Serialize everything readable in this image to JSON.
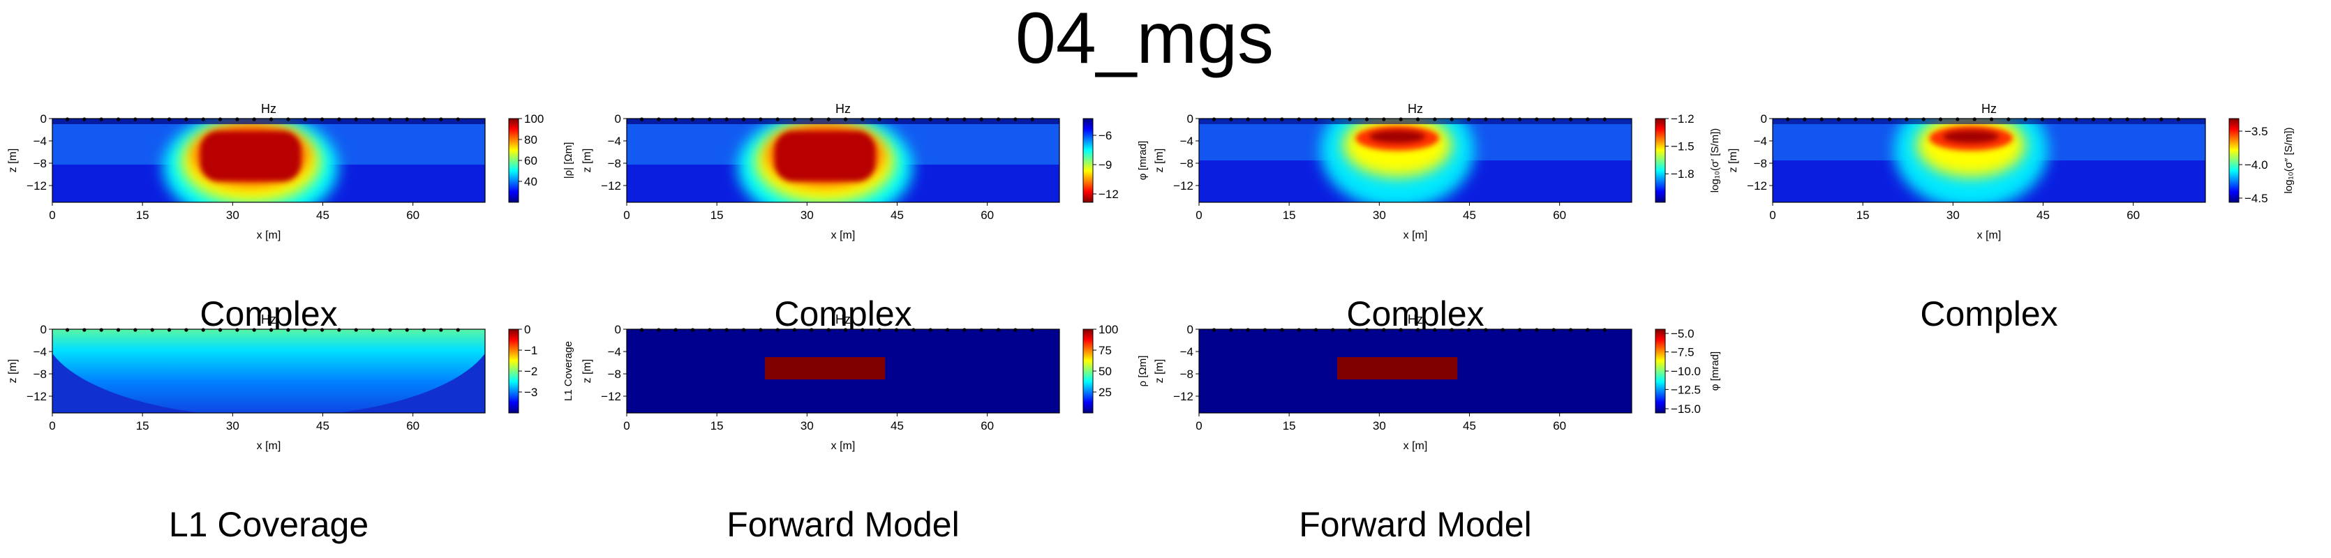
{
  "title": "04_mgs",
  "colors": {
    "electrode": "#000000",
    "background_model": "#00008f",
    "anomaly_model": "#800000"
  },
  "chart_data": [
    {
      "type": "heatmap",
      "title": "Hz",
      "xlabel": "x [m]",
      "ylabel": "z [m]",
      "x_ticks": [
        "0",
        "15",
        "30",
        "45",
        "60"
      ],
      "y_ticks": [
        "0",
        "−4",
        "−8",
        "−12"
      ],
      "xlim": [
        0,
        72
      ],
      "ylim": [
        -15,
        0
      ],
      "colormap": "jet_r",
      "pattern": "anomaly",
      "colorbar": {
        "label": "|ρ| [Ωm]",
        "ticks": [
          "100",
          "80",
          "60",
          "40"
        ],
        "tick_fracs": [
          0,
          0.25,
          0.5,
          0.75
        ]
      },
      "caption": "Complex"
    },
    {
      "type": "heatmap",
      "title": "Hz",
      "xlabel": "x [m]",
      "ylabel": "z [m]",
      "x_ticks": [
        "0",
        "15",
        "30",
        "45",
        "60"
      ],
      "y_ticks": [
        "0",
        "−4",
        "−8",
        "−12"
      ],
      "xlim": [
        0,
        72
      ],
      "ylim": [
        -15,
        0
      ],
      "colormap": "jet",
      "pattern": "anomaly",
      "colorbar": {
        "label": "φ [mrad]",
        "ticks": [
          "−6",
          "−9",
          "−12"
        ],
        "tick_fracs": [
          0.2,
          0.55,
          0.9
        ]
      },
      "caption": "Complex"
    },
    {
      "type": "heatmap",
      "title": "Hz",
      "xlabel": "x [m]",
      "ylabel": "z [m]",
      "x_ticks": [
        "0",
        "15",
        "30",
        "45",
        "60"
      ],
      "y_ticks": [
        "0",
        "−4",
        "−8",
        "−12"
      ],
      "xlim": [
        0,
        72
      ],
      "ylim": [
        -15,
        0
      ],
      "colormap": "jet_r",
      "pattern": "anomaly_shallow",
      "colorbar": {
        "label": "log₁₀(σ′ [S/m])",
        "ticks": [
          "−1.2",
          "−1.5",
          "−1.8"
        ],
        "tick_fracs": [
          0,
          0.33,
          0.66
        ]
      },
      "caption": "Complex"
    },
    {
      "type": "heatmap",
      "title": "Hz",
      "xlabel": "x [m]",
      "ylabel": "z [m]",
      "x_ticks": [
        "0",
        "15",
        "30",
        "45",
        "60"
      ],
      "y_ticks": [
        "0",
        "−4",
        "−8",
        "−12"
      ],
      "xlim": [
        0,
        72
      ],
      "ylim": [
        -15,
        0
      ],
      "colormap": "jet_r",
      "pattern": "anomaly_shallow",
      "colorbar": {
        "label": "log₁₀(σ″ [S/m])",
        "ticks": [
          "−3.5",
          "−4.0",
          "−4.5"
        ],
        "tick_fracs": [
          0.15,
          0.55,
          0.95
        ]
      },
      "caption": "Complex"
    },
    {
      "type": "heatmap",
      "title": "Hz",
      "xlabel": "x [m]",
      "ylabel": "z [m]",
      "x_ticks": [
        "0",
        "15",
        "30",
        "45",
        "60"
      ],
      "y_ticks": [
        "0",
        "−4",
        "−8",
        "−12"
      ],
      "xlim": [
        0,
        72
      ],
      "ylim": [
        -15,
        0
      ],
      "colormap": "jet_r",
      "pattern": "coverage",
      "colorbar": {
        "label": "L1 Coverage",
        "ticks": [
          "0",
          "−1",
          "−2",
          "−3"
        ],
        "tick_fracs": [
          0,
          0.25,
          0.5,
          0.75
        ]
      },
      "caption": "L1 Coverage"
    },
    {
      "type": "heatmap",
      "title": "Hz",
      "xlabel": "x [m]",
      "ylabel": "z [m]",
      "x_ticks": [
        "0",
        "15",
        "30",
        "45",
        "60"
      ],
      "y_ticks": [
        "0",
        "−4",
        "−8",
        "−12"
      ],
      "xlim": [
        0,
        72
      ],
      "ylim": [
        -15,
        0
      ],
      "colormap": "jet_r",
      "pattern": "block",
      "block": {
        "x": [
          23,
          43
        ],
        "z": [
          -5,
          -9
        ]
      },
      "colorbar": {
        "label": "ρ [Ωm]",
        "ticks": [
          "100",
          "75",
          "50",
          "25"
        ],
        "tick_fracs": [
          0,
          0.25,
          0.5,
          0.75
        ]
      },
      "caption": "Forward Model"
    },
    {
      "type": "heatmap",
      "title": "Hz",
      "xlabel": "x [m]",
      "ylabel": "z [m]",
      "x_ticks": [
        "0",
        "15",
        "30",
        "45",
        "60"
      ],
      "y_ticks": [
        "0",
        "−4",
        "−8",
        "−12"
      ],
      "xlim": [
        0,
        72
      ],
      "ylim": [
        -15,
        0
      ],
      "colormap": "jet_r",
      "pattern": "block",
      "block": {
        "x": [
          23,
          43
        ],
        "z": [
          -5,
          -9
        ]
      },
      "colorbar": {
        "label": "φ [mrad]",
        "ticks": [
          "−5.0",
          "−7.5",
          "−10.0",
          "−12.5",
          "−15.0"
        ],
        "tick_fracs": [
          0.05,
          0.27,
          0.5,
          0.72,
          0.95
        ]
      },
      "caption": "Forward Model"
    }
  ]
}
